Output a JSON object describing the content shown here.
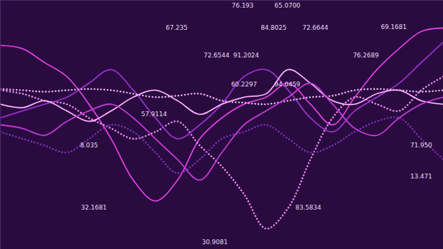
{
  "chart_data": {
    "type": "line",
    "x": [
      0,
      5,
      10,
      15,
      20,
      25,
      30,
      35,
      40,
      45,
      50,
      55,
      60,
      65,
      70,
      75,
      80,
      85,
      90,
      95,
      100
    ],
    "xlim": [
      0,
      100
    ],
    "ylim": [
      0,
      100
    ],
    "tick_labels": false,
    "grid": false,
    "series": [
      {
        "color": "#e040e0",
        "line_style": "solid",
        "values": [
          81.9,
          80.6,
          75,
          69.4,
          58.3,
          44.4,
          27.8,
          19.4,
          27.8,
          44.4,
          52.8,
          58.3,
          61.1,
          66.7,
          58.3,
          50,
          61.1,
          72.2,
          80.6,
          87.5,
          88.9
        ]
      },
      {
        "color": "#f08cf0",
        "line_style": "dotted",
        "values": [
          63.9,
          62.5,
          59.7,
          58.3,
          52.8,
          48.6,
          44.4,
          47.2,
          51.4,
          41.7,
          33.3,
          22.2,
          8.3,
          16.7,
          36.1,
          52.8,
          61.1,
          58.3,
          55.6,
          63.9,
          69.4
        ]
      },
      {
        "color": "#9b30d0",
        "line_style": "solid",
        "values": [
          52.8,
          55.6,
          58.3,
          61.1,
          66.7,
          72.2,
          63.9,
          52.8,
          44.4,
          50,
          58.3,
          69.4,
          72.2,
          63.9,
          52.8,
          47.2,
          55.6,
          61.1,
          66.7,
          75,
          83.3
        ]
      },
      {
        "color": "#ffb0ff",
        "line_style": "solid",
        "values": [
          58.3,
          56.9,
          59.7,
          55.6,
          51.4,
          55.6,
          61.1,
          63.9,
          59.7,
          54.2,
          58.3,
          61.1,
          62.5,
          72.2,
          66.7,
          59.7,
          58.3,
          62.5,
          63.9,
          59.7,
          58.3
        ]
      },
      {
        "color": "#e8b0f0",
        "line_style": "dotted",
        "values": [
          64.4,
          63.9,
          63.3,
          63.9,
          64.4,
          63.9,
          62.5,
          61.1,
          61.7,
          62.5,
          59.7,
          58.9,
          58.3,
          59.7,
          61.1,
          61.7,
          63.9,
          64.4,
          63.9,
          63.3,
          63.9
        ]
      },
      {
        "color": "#7a2fb8",
        "line_style": "dotted",
        "values": [
          47.2,
          44.4,
          41.7,
          38.9,
          44.4,
          50,
          47.2,
          38.9,
          30.6,
          36.1,
          44.4,
          47.2,
          50,
          44.4,
          38.9,
          41.7,
          47.2,
          51.4,
          52.8,
          44.4,
          36.1
        ]
      },
      {
        "color": "#c43ad8",
        "line_style": "solid",
        "values": [
          50,
          48.6,
          45.8,
          51.4,
          55.6,
          58.3,
          52.8,
          44.4,
          36.1,
          27.8,
          38.9,
          50,
          55.6,
          61.1,
          66.7,
          58.3,
          48.6,
          45.8,
          52.8,
          58.3,
          61.1
        ]
      }
    ],
    "annotations": [
      {
        "text": "76.193",
        "x": 54.7,
        "y": 98
      },
      {
        "text": "65.0700",
        "x": 64.8,
        "y": 98
      },
      {
        "text": "67.235",
        "x": 39.8,
        "y": 88.9
      },
      {
        "text": "84.8025",
        "x": 61.7,
        "y": 88.9
      },
      {
        "text": "72.6644",
        "x": 71.1,
        "y": 88.9
      },
      {
        "text": "69.1681",
        "x": 88.8,
        "y": 89.4
      },
      {
        "text": "72.6544",
        "x": 48.8,
        "y": 77.8
      },
      {
        "text": "91.2024",
        "x": 55.5,
        "y": 77.8
      },
      {
        "text": "76.2689",
        "x": 82.5,
        "y": 77.8
      },
      {
        "text": "60.2297",
        "x": 55,
        "y": 66.1
      },
      {
        "text": "94.0459",
        "x": 64.8,
        "y": 66.1
      },
      {
        "text": "57.9114",
        "x": 34.7,
        "y": 54.2
      },
      {
        "text": "8.035",
        "x": 20,
        "y": 41.7
      },
      {
        "text": "71.950",
        "x": 95,
        "y": 41.7
      },
      {
        "text": "13.471",
        "x": 95,
        "y": 29.2
      },
      {
        "text": "32.1681",
        "x": 21.1,
        "y": 16.7
      },
      {
        "text": "83.5834",
        "x": 69.5,
        "y": 16.7
      },
      {
        "text": "30.9081",
        "x": 48.4,
        "y": 2.8
      }
    ]
  }
}
